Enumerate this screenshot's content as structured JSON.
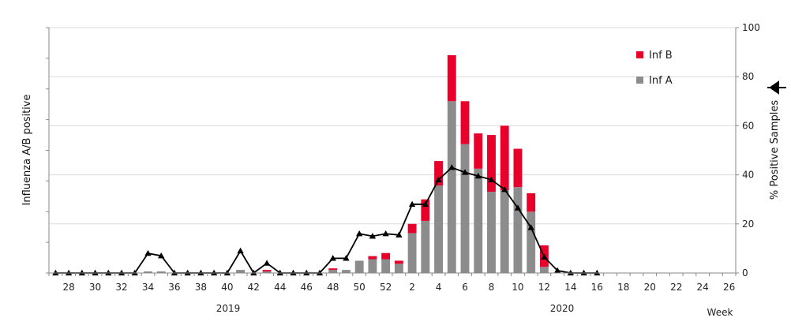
{
  "chart_data": {
    "type": "bar",
    "x_axis": {
      "unit_label": "Week",
      "tick_labels": [
        "28",
        "30",
        "32",
        "34",
        "36",
        "38",
        "40",
        "42",
        "44",
        "46",
        "48",
        "50",
        "52",
        "2",
        "4",
        "6",
        "8",
        "10",
        "12",
        "14",
        "16",
        "18",
        "20",
        "22",
        "24",
        "26"
      ],
      "year_labels": [
        "2019",
        "2020"
      ]
    },
    "y_left": {
      "label": "Influenza A/B positive",
      "ticks_shown": false
    },
    "y_right": {
      "label": "% Positive Samples",
      "range": [
        0,
        100
      ],
      "ticks": [
        0,
        20,
        40,
        60,
        80,
        100
      ]
    },
    "categories": [
      "27",
      "28",
      "29",
      "30",
      "31",
      "32",
      "33",
      "34",
      "35",
      "36",
      "37",
      "38",
      "39",
      "40",
      "41",
      "42",
      "43",
      "44",
      "45",
      "46",
      "47",
      "48",
      "49",
      "50",
      "51",
      "52",
      "1",
      "2",
      "3",
      "4",
      "5",
      "6",
      "7",
      "8",
      "9",
      "10",
      "11",
      "12",
      "13",
      "14",
      "15",
      "16",
      "17",
      "18",
      "19",
      "20",
      "21",
      "22",
      "23",
      "24",
      "25",
      "26"
    ],
    "bar_axis_max": 8,
    "series": [
      {
        "name": "Inf A",
        "kind": "stacked-bar",
        "color": "#8c8c8c",
        "values": [
          0,
          0,
          0,
          0,
          0,
          0,
          0,
          0.05,
          0.05,
          0,
          0,
          0,
          0,
          0,
          0.1,
          0,
          0.05,
          0,
          0,
          0,
          0,
          0.1,
          0.1,
          0.4,
          0.45,
          0.45,
          0.3,
          1.3,
          1.7,
          2.85,
          5.6,
          4.2,
          3.4,
          2.65,
          2.7,
          2.8,
          2.0,
          0.2,
          0,
          0,
          0,
          0,
          0,
          0,
          0,
          0,
          0,
          0,
          0,
          0,
          0,
          0
        ]
      },
      {
        "name": "Inf B",
        "kind": "stacked-bar",
        "color": "#e8002a",
        "values": [
          0,
          0,
          0,
          0,
          0,
          0,
          0,
          0,
          0,
          0,
          0,
          0,
          0,
          0,
          0,
          0,
          0.05,
          0,
          0,
          0,
          0,
          0.05,
          0,
          0,
          0.1,
          0.2,
          0.1,
          0.3,
          0.7,
          0.8,
          1.5,
          1.4,
          1.15,
          1.85,
          2.1,
          1.25,
          0.6,
          0.7,
          0,
          0,
          0,
          0,
          0,
          0,
          0,
          0,
          0,
          0,
          0,
          0,
          0,
          0
        ]
      },
      {
        "name": "% Positive Samples",
        "kind": "line",
        "axis": "right",
        "color": "#000000",
        "marker": "triangle",
        "values": [
          0,
          0,
          0,
          0,
          0,
          0,
          0,
          8,
          7,
          0,
          0,
          0,
          0,
          0,
          9,
          0,
          4,
          0,
          0,
          0,
          0,
          6,
          6,
          16,
          15,
          16,
          15.5,
          28,
          28,
          38,
          43,
          41,
          39.5,
          38,
          34,
          26.5,
          18.5,
          6.5,
          1,
          0,
          0,
          0,
          null,
          null,
          null,
          null,
          null,
          null,
          null,
          null,
          null,
          null
        ]
      }
    ],
    "legend": {
      "placement": "top-right",
      "entries": [
        "Inf B",
        "Inf A"
      ]
    },
    "grid": false
  }
}
